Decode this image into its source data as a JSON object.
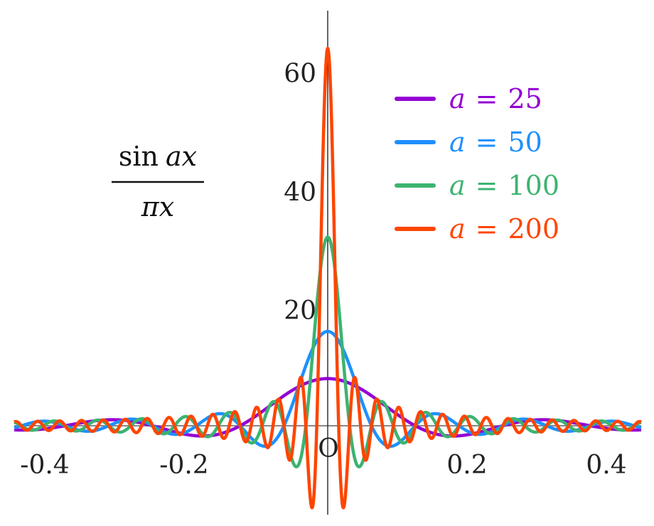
{
  "chart_data": {
    "type": "line",
    "title": "",
    "function_label": {
      "numerator": "sin ax",
      "numerator_fn": "sin",
      "numerator_arg": "ax",
      "denominator": "πx"
    },
    "xlabel": "",
    "ylabel": "",
    "xlim": [
      -0.45,
      0.45
    ],
    "ylim": [
      -15,
      71
    ],
    "grid": false,
    "legend_position": "top-right",
    "x_ticks": [
      {
        "value": -0.4,
        "label": "-0.4"
      },
      {
        "value": -0.2,
        "label": "-0.2"
      },
      {
        "value": 0,
        "label": "O"
      },
      {
        "value": 0.2,
        "label": "0.2"
      },
      {
        "value": 0.4,
        "label": "0.4"
      }
    ],
    "y_ticks": [
      {
        "value": 20,
        "label": "20"
      },
      {
        "value": 40,
        "label": "40"
      },
      {
        "value": 60,
        "label": "60"
      }
    ],
    "formula": "sin(a x) / (pi x)",
    "series": [
      {
        "name": "a = 25",
        "var": "a",
        "eq": "=",
        "value_label": "25",
        "a": 25,
        "color": "#9400D3",
        "peak": 7.96
      },
      {
        "name": "a = 50",
        "var": "a",
        "eq": "=",
        "value_label": "50",
        "a": 50,
        "color": "#1E90FF",
        "peak": 15.92
      },
      {
        "name": "a = 100",
        "var": "a",
        "eq": "=",
        "value_label": "100",
        "a": 100,
        "color": "#3CB371",
        "peak": 31.83
      },
      {
        "name": "a = 200",
        "var": "a",
        "eq": "=",
        "value_label": "200",
        "a": 200,
        "color": "#FF4500",
        "peak": 63.66
      }
    ]
  }
}
